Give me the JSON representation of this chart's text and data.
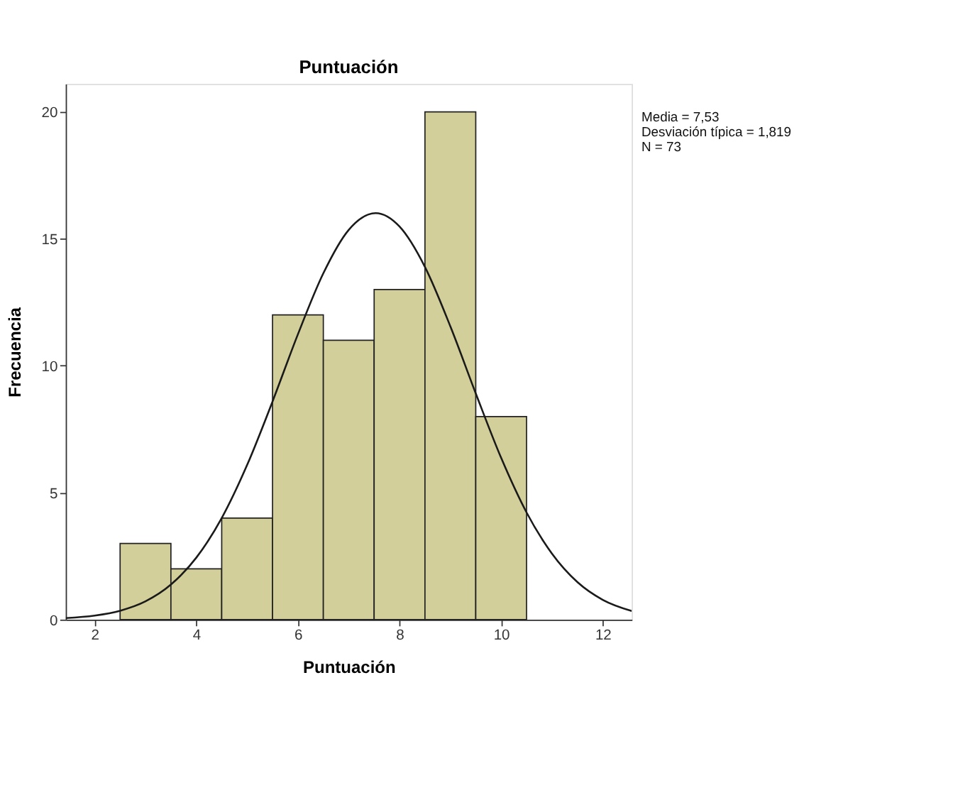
{
  "chart_data": {
    "type": "histogram",
    "title": "Puntuación",
    "xlabel": "Puntuación",
    "ylabel": "Frecuencia",
    "series": [
      {
        "type": "histogram",
        "bins": [
          2.5,
          3.5,
          4.5,
          5.5,
          6.5,
          7.5,
          8.5,
          9.5,
          10.5
        ],
        "values": [
          3,
          2,
          4,
          12,
          11,
          13,
          20,
          8
        ],
        "color": "#d3cf9b"
      },
      {
        "type": "line",
        "color": "#1a1a1a",
        "x": [
          1.43,
          2,
          2.5,
          3,
          3.5,
          4,
          4.5,
          5,
          5.5,
          6,
          6.5,
          7,
          7.53,
          8,
          8.5,
          9,
          9.5,
          10,
          10.5,
          11,
          11.5,
          12,
          12.57
        ],
        "values": [
          0.06,
          0.16,
          0.35,
          0.72,
          1.38,
          2.44,
          4.0,
          6.09,
          8.59,
          11.24,
          13.64,
          15.35,
          16.01,
          15.48,
          13.89,
          11.55,
          8.91,
          6.37,
          4.22,
          2.6,
          1.48,
          0.78,
          0.34
        ]
      }
    ],
    "xlim": [
      1.43,
      12.57
    ],
    "ylim": [
      0,
      21.1
    ],
    "xticks": [
      2,
      4,
      6,
      8,
      10,
      12
    ],
    "yticks": [
      0,
      5,
      10,
      15,
      20
    ],
    "grid": false,
    "annotations": [
      "Media = 7,53",
      "Desviación típica = 1,819",
      "N = 73"
    ]
  }
}
